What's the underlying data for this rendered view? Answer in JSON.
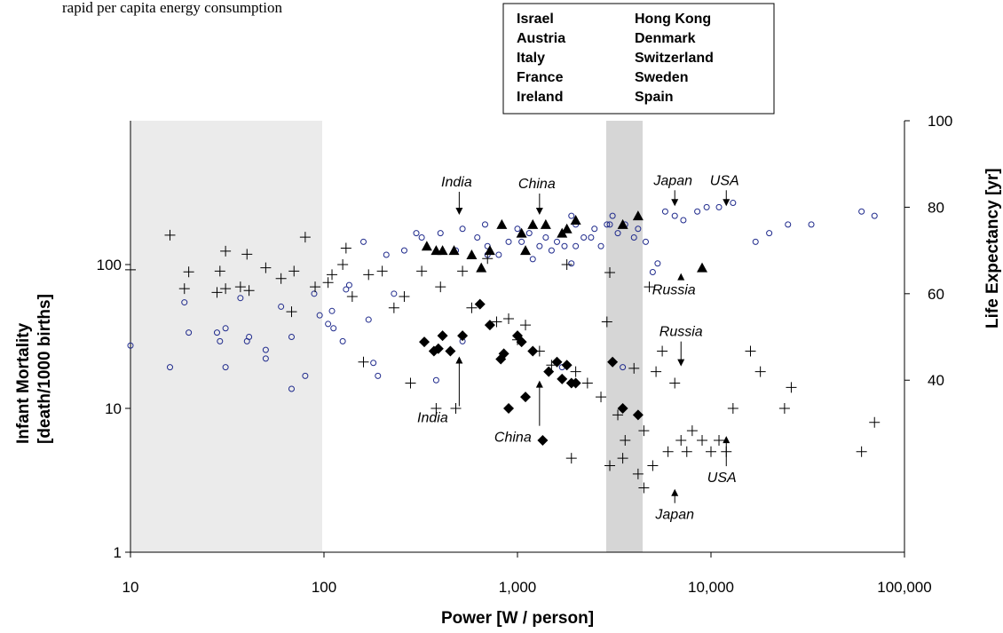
{
  "top_text_fragment": "rapid per capita energy consumption",
  "chart_data": {
    "type": "scatter",
    "xscale": "log",
    "xlim": [
      10,
      100000
    ],
    "x_ticks": [
      "10",
      "100",
      "1,000",
      "10,000",
      "100,000"
    ],
    "xlabel": "Power [W / person]",
    "ylabel_left": [
      "Infant Mortality",
      "[death/1000 births]"
    ],
    "ylim_left": [
      1,
      1000
    ],
    "yscale_left": "log",
    "y_ticks_left": [
      "1",
      "10",
      "100"
    ],
    "ylabel_right": "Life Expectancy [yr]",
    "ylim_right": [
      15,
      100
    ],
    "y_ticks_right": [
      "40",
      "60",
      "80",
      "100"
    ],
    "grid": false,
    "shaded_regions": [
      [
        10,
        100
      ],
      [
        3000,
        4500
      ]
    ],
    "legend_box": {
      "col1": [
        "Israel",
        "Austria",
        "Italy",
        "France",
        "Ireland"
      ],
      "col2": [
        "Hong Kong",
        "Denmark",
        "Switzerland",
        "Sweden",
        "Spain"
      ]
    },
    "annotations": {
      "life": [
        {
          "text": "India",
          "x": 500,
          "y": 77
        },
        {
          "text": "China",
          "x": 1300,
          "y": 77
        },
        {
          "text": "Japan",
          "x": 6500,
          "y": 79
        },
        {
          "text": "USA",
          "x": 12000,
          "y": 79
        },
        {
          "text": "Russia",
          "x": 7000,
          "y": 66
        }
      ],
      "mortality": [
        {
          "text": "Russia",
          "x": 7000,
          "y": 18
        },
        {
          "text": "India",
          "x": 500,
          "y": 25
        },
        {
          "text": "China",
          "x": 1300,
          "y": 17
        },
        {
          "text": "USA",
          "x": 12000,
          "y": 7
        },
        {
          "text": "Japan",
          "x": 6500,
          "y": 3
        }
      ]
    },
    "series": [
      {
        "marker": "open-circle",
        "color": "#1f2a8c",
        "axis": "right",
        "points": [
          [
            10,
            48
          ],
          [
            16,
            43
          ],
          [
            19,
            58
          ],
          [
            20,
            51
          ],
          [
            28,
            51
          ],
          [
            29,
            49
          ],
          [
            31,
            43
          ],
          [
            31,
            52
          ],
          [
            37,
            59
          ],
          [
            40,
            49
          ],
          [
            41,
            50
          ],
          [
            50,
            45
          ],
          [
            50,
            47
          ],
          [
            60,
            57
          ],
          [
            68,
            50
          ],
          [
            68,
            38
          ],
          [
            80,
            41
          ],
          [
            89,
            60
          ],
          [
            95,
            55
          ],
          [
            105,
            53
          ],
          [
            110,
            56
          ],
          [
            112,
            52
          ],
          [
            125,
            49
          ],
          [
            130,
            61
          ],
          [
            135,
            62
          ],
          [
            160,
            72
          ],
          [
            170,
            54
          ],
          [
            180,
            44
          ],
          [
            190,
            41
          ],
          [
            210,
            69
          ],
          [
            230,
            60
          ],
          [
            260,
            70
          ],
          [
            300,
            74
          ],
          [
            320,
            73
          ],
          [
            380,
            40
          ],
          [
            400,
            74
          ],
          [
            480,
            70
          ],
          [
            520,
            75
          ],
          [
            620,
            73
          ],
          [
            680,
            76
          ],
          [
            700,
            69
          ],
          [
            800,
            69
          ],
          [
            900,
            72
          ],
          [
            1000,
            75
          ],
          [
            1050,
            72
          ],
          [
            1150,
            74
          ],
          [
            1300,
            71
          ],
          [
            1400,
            73
          ],
          [
            1500,
            70
          ],
          [
            1600,
            72
          ],
          [
            1750,
            71
          ],
          [
            1900,
            78
          ],
          [
            2000,
            76
          ],
          [
            2200,
            73
          ],
          [
            2500,
            75
          ],
          [
            2700,
            71
          ],
          [
            2900,
            76
          ],
          [
            3100,
            78
          ],
          [
            3300,
            74
          ],
          [
            3600,
            76
          ],
          [
            4000,
            73
          ],
          [
            4200,
            75
          ],
          [
            4600,
            72
          ],
          [
            5000,
            65
          ],
          [
            5300,
            67
          ],
          [
            5800,
            79
          ],
          [
            6500,
            78
          ],
          [
            7200,
            77
          ],
          [
            8500,
            79
          ],
          [
            9500,
            80
          ],
          [
            11000,
            80
          ],
          [
            13000,
            81
          ],
          [
            17000,
            72
          ],
          [
            20000,
            74
          ],
          [
            25000,
            76
          ],
          [
            33000,
            76
          ],
          [
            60000,
            79
          ],
          [
            70000,
            78
          ],
          [
            520,
            49
          ],
          [
            1050,
            49
          ],
          [
            1700,
            43
          ],
          [
            3500,
            43
          ],
          [
            2000,
            71
          ],
          [
            2400,
            73
          ],
          [
            1200,
            68
          ],
          [
            1900,
            67
          ],
          [
            3000,
            76
          ],
          [
            700,
            71
          ]
        ]
      },
      {
        "marker": "filled-triangle",
        "color": "#000000",
        "axis": "right",
        "points": [
          [
            340,
            71
          ],
          [
            380,
            70
          ],
          [
            410,
            70
          ],
          [
            470,
            70
          ],
          [
            580,
            69
          ],
          [
            650,
            66
          ],
          [
            720,
            70
          ],
          [
            830,
            76
          ],
          [
            1050,
            74
          ],
          [
            1200,
            76
          ],
          [
            1400,
            76
          ],
          [
            1700,
            74
          ],
          [
            1800,
            75
          ],
          [
            2000,
            77
          ],
          [
            3500,
            76
          ],
          [
            4200,
            78
          ],
          [
            9000,
            66
          ],
          [
            1100,
            70
          ]
        ]
      },
      {
        "marker": "plus",
        "color": "#000000",
        "axis": "left",
        "points": [
          [
            10,
            92
          ],
          [
            16,
            160
          ],
          [
            19,
            68
          ],
          [
            20,
            89
          ],
          [
            28,
            64
          ],
          [
            29,
            90
          ],
          [
            31,
            68
          ],
          [
            31,
            124
          ],
          [
            37,
            70
          ],
          [
            40,
            118
          ],
          [
            41,
            66
          ],
          [
            50,
            95
          ],
          [
            60,
            80
          ],
          [
            68,
            47
          ],
          [
            70,
            90
          ],
          [
            80,
            155
          ],
          [
            90,
            70
          ],
          [
            105,
            75
          ],
          [
            110,
            85
          ],
          [
            125,
            100
          ],
          [
            130,
            130
          ],
          [
            140,
            60
          ],
          [
            160,
            21
          ],
          [
            170,
            85
          ],
          [
            200,
            90
          ],
          [
            230,
            50
          ],
          [
            260,
            60
          ],
          [
            280,
            15
          ],
          [
            320,
            90
          ],
          [
            380,
            10
          ],
          [
            400,
            70
          ],
          [
            480,
            10
          ],
          [
            520,
            90
          ],
          [
            580,
            50
          ],
          [
            700,
            110
          ],
          [
            780,
            40
          ],
          [
            900,
            42
          ],
          [
            1000,
            30
          ],
          [
            1100,
            38
          ],
          [
            1300,
            25
          ],
          [
            1500,
            20
          ],
          [
            1800,
            100
          ],
          [
            2000,
            18
          ],
          [
            2300,
            15
          ],
          [
            2700,
            12
          ],
          [
            2900,
            40
          ],
          [
            3000,
            88
          ],
          [
            3300,
            9
          ],
          [
            3600,
            6
          ],
          [
            4000,
            19
          ],
          [
            4500,
            7
          ],
          [
            4800,
            70
          ],
          [
            5200,
            18
          ],
          [
            5600,
            25
          ],
          [
            6000,
            5
          ],
          [
            6500,
            15
          ],
          [
            7000,
            6
          ],
          [
            7500,
            5
          ],
          [
            8000,
            7
          ],
          [
            9000,
            6
          ],
          [
            10000,
            5
          ],
          [
            11000,
            6
          ],
          [
            12000,
            5
          ],
          [
            13000,
            10
          ],
          [
            16000,
            25
          ],
          [
            18000,
            18
          ],
          [
            24000,
            10
          ],
          [
            26000,
            14
          ],
          [
            60000,
            5
          ],
          [
            70000,
            8
          ],
          [
            3000,
            4
          ],
          [
            3500,
            4.5
          ],
          [
            4200,
            3.5
          ],
          [
            4500,
            2.8
          ],
          [
            5000,
            4
          ],
          [
            1900,
            4.5
          ]
        ]
      },
      {
        "marker": "filled-diamond",
        "color": "#000000",
        "axis": "left",
        "points": [
          [
            330,
            29
          ],
          [
            370,
            25
          ],
          [
            390,
            26
          ],
          [
            410,
            32
          ],
          [
            450,
            25
          ],
          [
            520,
            32
          ],
          [
            640,
            53
          ],
          [
            720,
            38
          ],
          [
            820,
            22
          ],
          [
            850,
            24
          ],
          [
            900,
            10
          ],
          [
            1000,
            32
          ],
          [
            1050,
            29
          ],
          [
            1100,
            12
          ],
          [
            1200,
            25
          ],
          [
            1350,
            6
          ],
          [
            1450,
            18
          ],
          [
            1600,
            21
          ],
          [
            1700,
            16
          ],
          [
            1800,
            20
          ],
          [
            1900,
            15
          ],
          [
            2000,
            15
          ],
          [
            3100,
            21
          ],
          [
            3500,
            10
          ],
          [
            4200,
            9
          ]
        ]
      }
    ]
  }
}
